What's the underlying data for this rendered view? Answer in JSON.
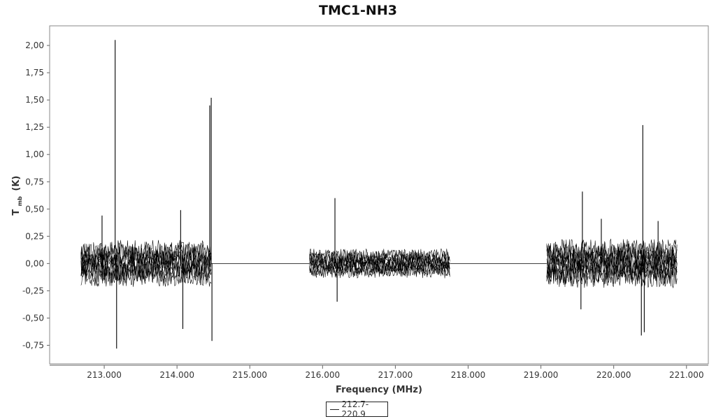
{
  "chart_data": {
    "type": "line",
    "title": "TMC1-NH3",
    "xlabel": "Frequency (MHz)",
    "ylabel_main": "T",
    "ylabel_sub": "mb",
    "ylabel_unit": "(K)",
    "xlim": [
      212.25,
      221.3
    ],
    "ylim": [
      -0.92,
      2.18
    ],
    "x_ticks": [
      213.0,
      214.0,
      215.0,
      216.0,
      217.0,
      218.0,
      219.0,
      220.0,
      221.0
    ],
    "x_tick_labels": [
      "213.000",
      "214.000",
      "215.000",
      "216.000",
      "217.000",
      "218.000",
      "219.000",
      "220.000",
      "221.000"
    ],
    "y_ticks": [
      -0.75,
      -0.5,
      -0.25,
      0.0,
      0.25,
      0.5,
      0.75,
      1.0,
      1.25,
      1.5,
      1.75,
      2.0
    ],
    "y_tick_labels": [
      "-0,75",
      "-0,50",
      "-0,25",
      "0,00",
      "0,25",
      "0,50",
      "0,75",
      "1,00",
      "1,25",
      "1,50",
      "1,75",
      "2,00"
    ],
    "grid": false,
    "legend_position": "bottom-center",
    "line_color": "#000000",
    "series": [
      {
        "name": "212.7-220.9",
        "baseline": 0.0,
        "bands": [
          {
            "x_start": 212.68,
            "x_end": 214.47,
            "noise_amplitude": 0.27
          },
          {
            "x_start": 215.82,
            "x_end": 217.75,
            "noise_amplitude": 0.17
          },
          {
            "x_start": 219.08,
            "x_end": 220.87,
            "noise_amplitude": 0.28
          }
        ],
        "peaks": [
          {
            "x": 213.15,
            "y": 2.05
          },
          {
            "x": 213.17,
            "y": -0.78
          },
          {
            "x": 212.97,
            "y": 0.44
          },
          {
            "x": 214.05,
            "y": 0.49
          },
          {
            "x": 214.08,
            "y": -0.6
          },
          {
            "x": 214.45,
            "y": 1.45
          },
          {
            "x": 214.47,
            "y": 1.52
          },
          {
            "x": 214.48,
            "y": -0.71
          },
          {
            "x": 216.17,
            "y": 0.6
          },
          {
            "x": 216.2,
            "y": -0.35
          },
          {
            "x": 219.57,
            "y": 0.66
          },
          {
            "x": 219.55,
            "y": -0.42
          },
          {
            "x": 219.83,
            "y": 0.41
          },
          {
            "x": 220.4,
            "y": 1.27
          },
          {
            "x": 220.38,
            "y": -0.66
          },
          {
            "x": 220.42,
            "y": -0.63
          },
          {
            "x": 220.61,
            "y": 0.39
          }
        ]
      }
    ]
  }
}
